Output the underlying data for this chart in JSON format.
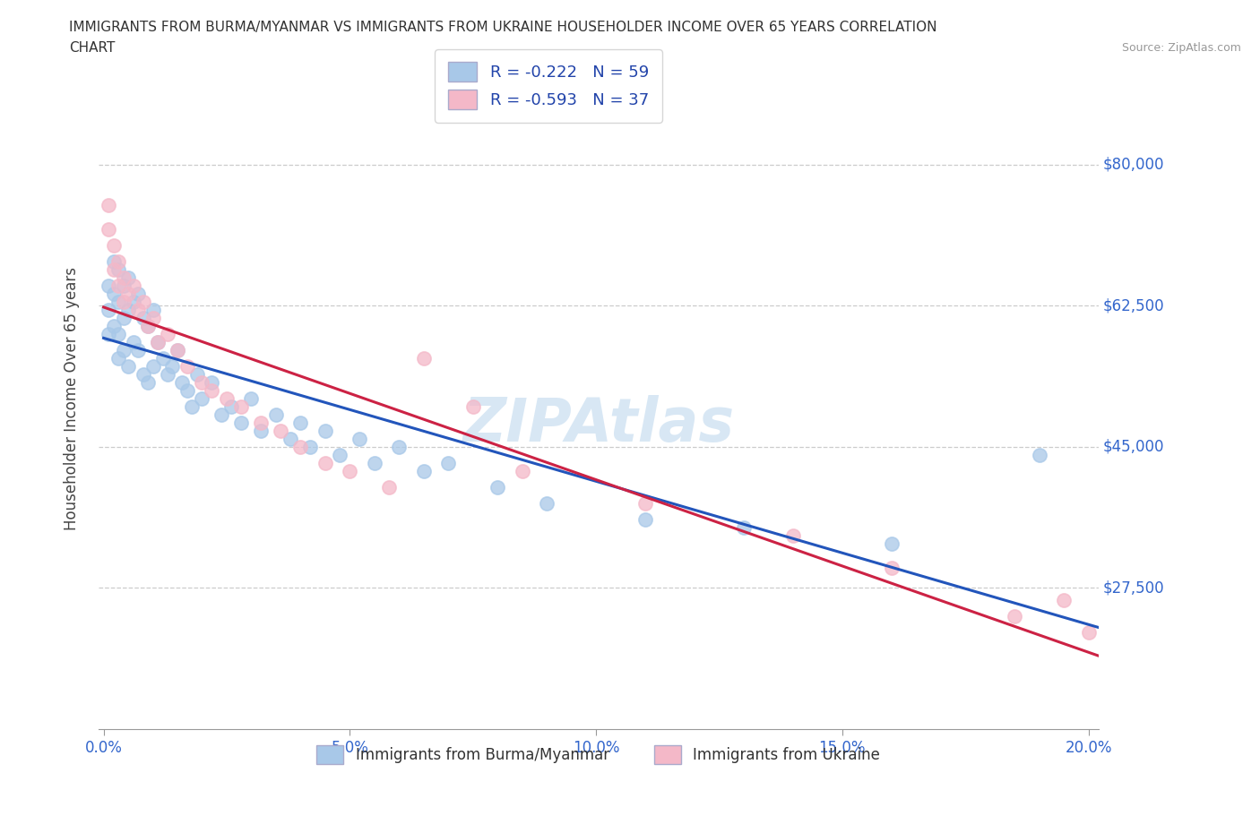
{
  "title_line1": "IMMIGRANTS FROM BURMA/MYANMAR VS IMMIGRANTS FROM UKRAINE HOUSEHOLDER INCOME OVER 65 YEARS CORRELATION",
  "title_line2": "CHART",
  "source": "Source: ZipAtlas.com",
  "ylabel": "Householder Income Over 65 years",
  "xlim": [
    -0.001,
    0.202
  ],
  "ylim": [
    10000,
    92000
  ],
  "yticks": [
    27500,
    45000,
    62500,
    80000
  ],
  "ytick_labels": [
    "$27,500",
    "$45,000",
    "$62,500",
    "$80,000"
  ],
  "xticks": [
    0.0,
    0.05,
    0.1,
    0.15,
    0.2
  ],
  "xtick_labels": [
    "0.0%",
    "5.0%",
    "10.0%",
    "15.0%",
    "20.0%"
  ],
  "color_burma": "#a8c8e8",
  "color_ukraine": "#f4b8c8",
  "line_color_burma": "#2255bb",
  "line_color_ukraine": "#cc2244",
  "R_burma": -0.222,
  "N_burma": 59,
  "R_ukraine": -0.593,
  "N_ukraine": 37,
  "watermark": "ZIPAtlas",
  "burma_x": [
    0.001,
    0.001,
    0.001,
    0.002,
    0.002,
    0.002,
    0.003,
    0.003,
    0.003,
    0.003,
    0.004,
    0.004,
    0.004,
    0.005,
    0.005,
    0.005,
    0.006,
    0.006,
    0.007,
    0.007,
    0.008,
    0.008,
    0.009,
    0.009,
    0.01,
    0.01,
    0.011,
    0.012,
    0.013,
    0.014,
    0.015,
    0.016,
    0.017,
    0.018,
    0.019,
    0.02,
    0.022,
    0.024,
    0.026,
    0.028,
    0.03,
    0.032,
    0.035,
    0.038,
    0.04,
    0.042,
    0.045,
    0.048,
    0.052,
    0.055,
    0.06,
    0.065,
    0.07,
    0.08,
    0.09,
    0.11,
    0.13,
    0.16,
    0.19
  ],
  "burma_y": [
    65000,
    62000,
    59000,
    68000,
    64000,
    60000,
    67000,
    63000,
    59000,
    56000,
    65000,
    61000,
    57000,
    66000,
    62000,
    55000,
    63000,
    58000,
    64000,
    57000,
    61000,
    54000,
    60000,
    53000,
    62000,
    55000,
    58000,
    56000,
    54000,
    55000,
    57000,
    53000,
    52000,
    50000,
    54000,
    51000,
    53000,
    49000,
    50000,
    48000,
    51000,
    47000,
    49000,
    46000,
    48000,
    45000,
    47000,
    44000,
    46000,
    43000,
    45000,
    42000,
    43000,
    40000,
    38000,
    36000,
    35000,
    33000,
    44000
  ],
  "ukraine_x": [
    0.001,
    0.001,
    0.002,
    0.002,
    0.003,
    0.003,
    0.004,
    0.004,
    0.005,
    0.006,
    0.007,
    0.008,
    0.009,
    0.01,
    0.011,
    0.013,
    0.015,
    0.017,
    0.02,
    0.022,
    0.025,
    0.028,
    0.032,
    0.036,
    0.04,
    0.045,
    0.05,
    0.058,
    0.065,
    0.075,
    0.085,
    0.11,
    0.14,
    0.16,
    0.185,
    0.195,
    0.2
  ],
  "ukraine_y": [
    75000,
    72000,
    70000,
    67000,
    68000,
    65000,
    66000,
    63000,
    64000,
    65000,
    62000,
    63000,
    60000,
    61000,
    58000,
    59000,
    57000,
    55000,
    53000,
    52000,
    51000,
    50000,
    48000,
    47000,
    45000,
    43000,
    42000,
    40000,
    56000,
    50000,
    42000,
    38000,
    34000,
    30000,
    24000,
    26000,
    22000
  ]
}
